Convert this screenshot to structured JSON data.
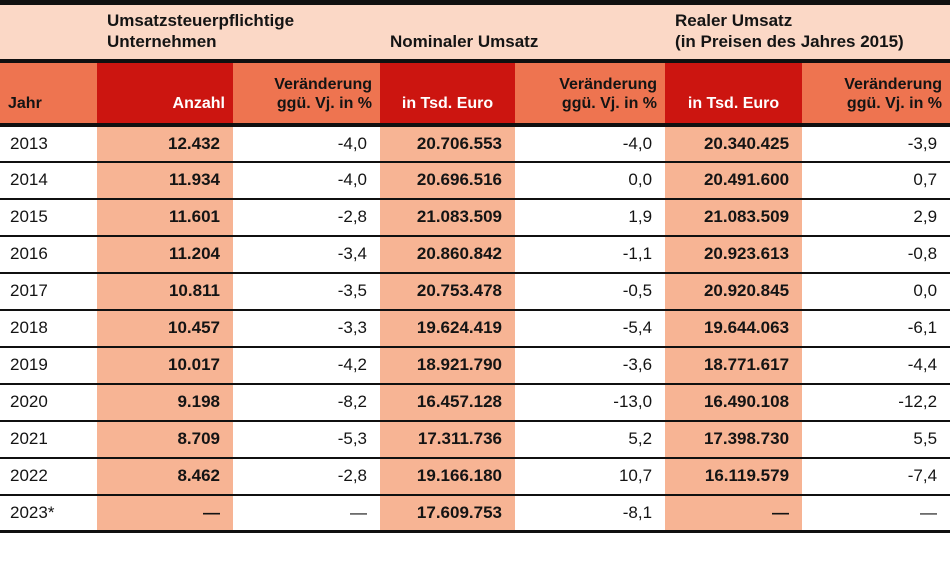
{
  "colors": {
    "band_peach": "#fbd8c6",
    "header_orange": "#ee7450",
    "header_red": "#cc1510",
    "highlight_salmon": "#f7b494",
    "border_black": "#101010",
    "header_text_white": "#ffffff",
    "text_black": "#141414"
  },
  "chart_data": {
    "type": "table",
    "title": "",
    "group_headers": [
      {
        "label": "Umsatzsteuerpflichtige\nUnternehmen",
        "span": 2
      },
      {
        "label": "Nominaler Umsatz",
        "span": 2
      },
      {
        "label": "Realer Umsatz\n(in Preisen des Jahres 2015)",
        "span": 2
      }
    ],
    "columns": [
      {
        "label": "Jahr"
      },
      {
        "label": "Anzahl"
      },
      {
        "label": "Veränderung\nggü. Vj. in %"
      },
      {
        "label": "in Tsd. Euro"
      },
      {
        "label": "Veränderung\nggü. Vj. in %"
      },
      {
        "label": "in Tsd. Euro"
      },
      {
        "label": "Veränderung\nggü. Vj. in %"
      }
    ],
    "rows": [
      [
        "2013",
        "12.432",
        "-4,0",
        "20.706.553",
        "-4,0",
        "20.340.425",
        "-3,9"
      ],
      [
        "2014",
        "11.934",
        "-4,0",
        "20.696.516",
        "0,0",
        "20.491.600",
        "0,7"
      ],
      [
        "2015",
        "11.601",
        "-2,8",
        "21.083.509",
        "1,9",
        "21.083.509",
        "2,9"
      ],
      [
        "2016",
        "11.204",
        "-3,4",
        "20.860.842",
        "-1,1",
        "20.923.613",
        "-0,8"
      ],
      [
        "2017",
        "10.811",
        "-3,5",
        "20.753.478",
        "-0,5",
        "20.920.845",
        "0,0"
      ],
      [
        "2018",
        "10.457",
        "-3,3",
        "19.624.419",
        "-5,4",
        "19.644.063",
        "-6,1"
      ],
      [
        "2019",
        "10.017",
        "-4,2",
        "18.921.790",
        "-3,6",
        "18.771.617",
        "-4,4"
      ],
      [
        "2020",
        "9.198",
        "-8,2",
        "16.457.128",
        "-13,0",
        "16.490.108",
        "-12,2"
      ],
      [
        "2021",
        "8.709",
        "-5,3",
        "17.311.736",
        "5,2",
        "17.398.730",
        "5,5"
      ],
      [
        "2022",
        "8.462",
        "-2,8",
        "19.166.180",
        "10,7",
        "16.119.579",
        "-7,4"
      ],
      [
        "2023*",
        "—",
        "—",
        "17.609.753",
        "-8,1",
        "—",
        "—"
      ]
    ]
  }
}
